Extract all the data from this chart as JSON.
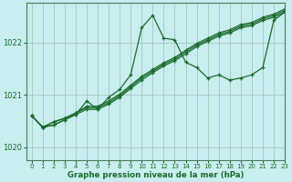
{
  "title": "Graphe pression niveau de la mer (hPa)",
  "bg_color": "#c8eef0",
  "grid_color": "#9bbfb5",
  "line_color": "#1a6b2a",
  "xlim": [
    -0.5,
    23
  ],
  "ylim": [
    1019.75,
    1022.75
  ],
  "yticks": [
    1020,
    1021,
    1022
  ],
  "xticks": [
    0,
    1,
    2,
    3,
    4,
    5,
    6,
    7,
    8,
    9,
    10,
    11,
    12,
    13,
    14,
    15,
    16,
    17,
    18,
    19,
    20,
    21,
    22,
    23
  ],
  "line1": [
    1020.6,
    1020.38,
    1020.42,
    1020.52,
    1020.62,
    1020.88,
    1020.72,
    1020.95,
    1021.1,
    1021.38,
    1022.28,
    1022.52,
    1022.08,
    1022.05,
    1021.62,
    1021.52,
    1021.32,
    1021.38,
    1021.28,
    1021.32,
    1021.38,
    1021.52,
    1022.42,
    1022.58
  ],
  "line2": [
    1020.6,
    1020.38,
    1020.42,
    1020.52,
    1020.62,
    1020.72,
    1020.72,
    1020.82,
    1020.95,
    1021.12,
    1021.28,
    1021.42,
    1021.55,
    1021.65,
    1021.78,
    1021.92,
    1022.02,
    1022.12,
    1022.18,
    1022.28,
    1022.32,
    1022.42,
    1022.48,
    1022.58
  ],
  "line3": [
    1020.6,
    1020.38,
    1020.48,
    1020.55,
    1020.65,
    1020.75,
    1020.75,
    1020.85,
    1020.98,
    1021.15,
    1021.32,
    1021.45,
    1021.58,
    1021.68,
    1021.82,
    1021.95,
    1022.05,
    1022.15,
    1022.21,
    1022.31,
    1022.35,
    1022.45,
    1022.51,
    1022.61
  ],
  "line4": [
    1020.6,
    1020.38,
    1020.48,
    1020.55,
    1020.65,
    1020.78,
    1020.78,
    1020.88,
    1021.01,
    1021.18,
    1021.35,
    1021.48,
    1021.61,
    1021.71,
    1021.85,
    1021.98,
    1022.08,
    1022.18,
    1022.24,
    1022.34,
    1022.38,
    1022.48,
    1022.54,
    1022.64
  ]
}
